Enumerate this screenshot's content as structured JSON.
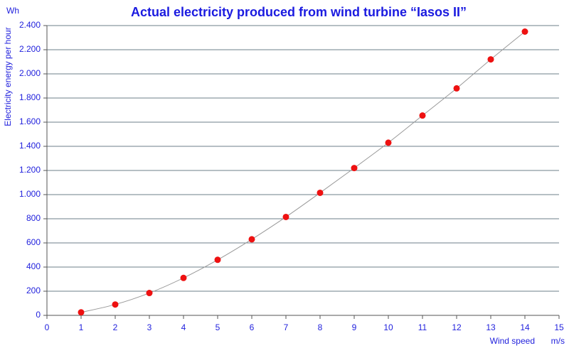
{
  "chart_data": {
    "type": "scatter",
    "title": "Actual electricity produced from wind turbine “Iasos II”",
    "y_label": "Electricity energy per hour",
    "y_unit": "Wh",
    "x_label": "Wind speed",
    "x_unit": "m/s",
    "series": [
      {
        "color": "#ee1111",
        "line_color": "#999999",
        "smooth_line": true,
        "x": [
          1,
          2,
          3,
          4,
          5,
          6,
          7,
          8,
          9,
          10,
          11,
          12,
          13,
          14
        ],
        "values": [
          25,
          90,
          185,
          310,
          460,
          630,
          815,
          1015,
          1220,
          1430,
          1655,
          1880,
          2120,
          2350
        ]
      }
    ],
    "xlim": [
      0,
      15
    ],
    "xticks": [
      0,
      1,
      2,
      3,
      4,
      5,
      6,
      7,
      8,
      9,
      10,
      11,
      12,
      13,
      14,
      15
    ],
    "ylim": [
      0,
      2400
    ],
    "yticks": [
      0,
      200,
      400,
      600,
      800,
      {
        "value": 1000,
        "label": "1.000"
      },
      {
        "value": 1200,
        "label": "1.200"
      },
      {
        "value": 1400,
        "label": "1.400"
      },
      {
        "value": 1600,
        "label": "1.600"
      },
      {
        "value": 1800,
        "label": "1.800"
      },
      {
        "value": 2000,
        "label": "2.000"
      },
      {
        "value": 2200,
        "label": "2.200"
      },
      {
        "value": 2400,
        "label": "2.400"
      }
    ],
    "grid": true
  }
}
